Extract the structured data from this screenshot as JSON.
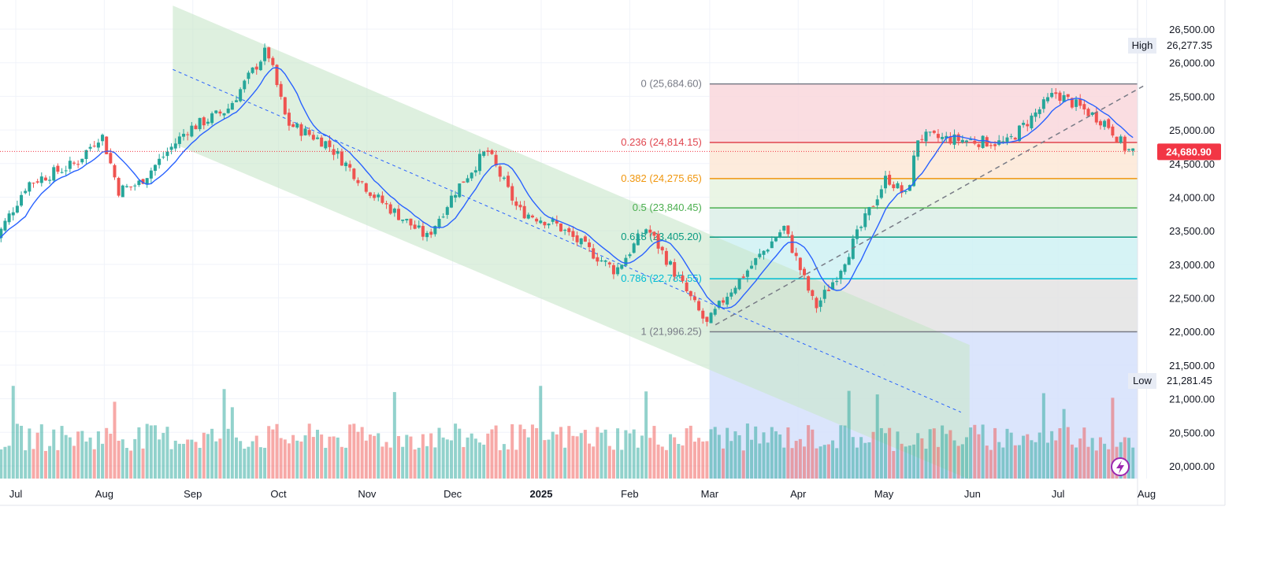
{
  "chart_data": {
    "type": "candlestick",
    "title": "",
    "ylim": [
      19800,
      26800
    ],
    "y_ticks": [
      "26,500.00",
      "26,000.00",
      "25,500.00",
      "25,000.00",
      "24,500.00",
      "24,000.00",
      "23,500.00",
      "23,000.00",
      "22,500.00",
      "22,000.00",
      "21,500.00",
      "21,000.00",
      "20,500.00",
      "20,000.00"
    ],
    "y_tick_values": [
      26500,
      26000,
      25500,
      25000,
      24500,
      24000,
      23500,
      23000,
      22500,
      22000,
      21500,
      21000,
      20500,
      20000
    ],
    "x_labels": [
      "Jul",
      "Aug",
      "Sep",
      "Oct",
      "Nov",
      "Dec",
      "2025",
      "Feb",
      "Mar",
      "Apr",
      "May",
      "Jun",
      "Jul",
      "Aug"
    ],
    "x_label_dates": [
      "2024-07-01",
      "2024-08-01",
      "2024-09-01",
      "2024-10-01",
      "2024-11-01",
      "2024-12-01",
      "2025-01-01",
      "2025-02-01",
      "2025-03-01",
      "2025-04-01",
      "2025-05-01",
      "2025-06-01",
      "2025-07-01",
      "2025-08-01"
    ],
    "x_range": [
      "2024-06-23",
      "2025-08-01"
    ],
    "last_price": "24,680.90",
    "last_price_value": 24680.9,
    "high_label": "High",
    "high_value": "26,277.35",
    "low_label": "Low",
    "low_value": "21,281.45",
    "fib_levels": [
      {
        "text": "0 (25,684.60)",
        "value": 25684.6,
        "color": "#787b86",
        "fill": "#f9d7dc"
      },
      {
        "text": "0.236 (24,814.15)",
        "value": 24814.15,
        "color": "#e0454e",
        "fill": "#fde8d6"
      },
      {
        "text": "0.382 (24,275.65)",
        "value": 24275.65,
        "color": "#f0960d",
        "fill": "#e6f3e0"
      },
      {
        "text": "0.5 (23,840.45)",
        "value": 23840.45,
        "color": "#4caf50",
        "fill": "#dcefe8"
      },
      {
        "text": "0.618 (23,405.20)",
        "value": 23405.2,
        "color": "#089981",
        "fill": "#cff1f3"
      },
      {
        "text": "0.786 (22,785.55)",
        "value": 22785.55,
        "color": "#00bcd4",
        "fill": "#e3e3e3"
      },
      {
        "text": "1 (21,996.25)",
        "value": 21996.25,
        "color": "#787b86",
        "fill": "#d5e0fb"
      }
    ],
    "fib_start_date": "2025-03-01",
    "fib_end_date": "2025-08-01",
    "channel": {
      "upper_start": {
        "date": "2024-08-25",
        "value": 26850
      },
      "upper_end": {
        "date": "2025-05-31",
        "value": 21800
      },
      "lower_start": {
        "date": "2024-08-25",
        "value": 24800
      },
      "lower_end": {
        "date": "2025-05-31",
        "value": 19800
      }
    },
    "channel_midline": {
      "start": {
        "date": "2024-08-25",
        "value": 25900
      },
      "end": {
        "date": "2025-05-28",
        "value": 20800
      }
    },
    "trendline": {
      "start": {
        "date": "2025-03-03",
        "value": 22100
      },
      "end": {
        "date": "2025-08-01",
        "value": 25680
      }
    },
    "series": [
      {
        "name": "",
        "type": "candles",
        "note": "generated in script"
      },
      {
        "name": "",
        "type": "ma"
      },
      {
        "name": "",
        "type": "volume"
      }
    ],
    "colors": {
      "up": "#26a69a",
      "down": "#ef5350",
      "ma": "#2962ff",
      "last_price": "#f23645",
      "channel_fill": "#c8e6c9",
      "grid": "#f0f3fa"
    }
  }
}
